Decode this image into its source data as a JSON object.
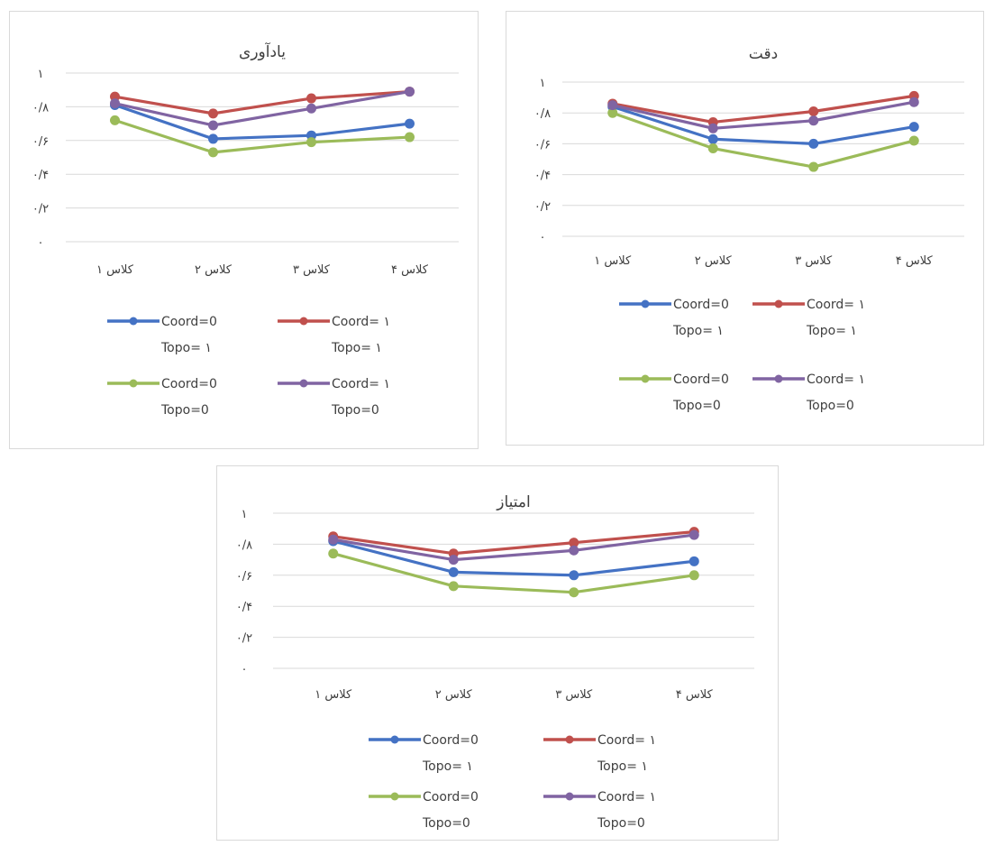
{
  "chart_data": [
    {
      "type": "line",
      "title": "یادآوری",
      "categories": [
        "کلاس ۱",
        "کلاس ۲",
        "کلاس ۳",
        "کلاس ۴"
      ],
      "y_tick_labels": [
        "۰",
        "۰/۲",
        "۰/۴",
        "۰/۶",
        "۰/۸",
        "۱"
      ],
      "ylim": [
        0,
        1
      ],
      "grid": true,
      "legend_position": "bottom",
      "series": [
        {
          "name": "Coord=0 Topo= ۱",
          "name_lines": [
            "Coord=0",
            "Topo= ۱"
          ],
          "color": "#4472c4",
          "values": [
            0.81,
            0.61,
            0.63,
            0.7
          ]
        },
        {
          "name": "Coord= ۱ Topo= ۱",
          "name_lines": [
            "Coord= ۱",
            "Topo= ۱"
          ],
          "color": "#c0504d",
          "values": [
            0.86,
            0.76,
            0.85,
            0.89
          ]
        },
        {
          "name": "Coord=0 Topo=0",
          "name_lines": [
            "Coord=0",
            "Topo=0"
          ],
          "color": "#9bbb59",
          "values": [
            0.72,
            0.53,
            0.59,
            0.62
          ]
        },
        {
          "name": "Coord= ۱ Topo=0",
          "name_lines": [
            "Coord= ۱",
            "Topo=0"
          ],
          "color": "#8064a2",
          "values": [
            0.82,
            0.69,
            0.79,
            0.89
          ]
        }
      ]
    },
    {
      "type": "line",
      "title": "دقت",
      "categories": [
        "کلاس ۱",
        "کلاس ۲",
        "کلاس ۳",
        "کلاس ۴"
      ],
      "y_tick_labels": [
        "۰",
        "۰/۲",
        "۰/۴",
        "۰/۶",
        "۰/۸",
        "۱"
      ],
      "ylim": [
        0,
        1
      ],
      "grid": true,
      "legend_position": "bottom",
      "series": [
        {
          "name": "Coord=0 Topo= ۱",
          "name_lines": [
            "Coord=0",
            "Topo= ۱"
          ],
          "color": "#4472c4",
          "values": [
            0.84,
            0.63,
            0.6,
            0.71
          ]
        },
        {
          "name": "Coord= ۱ Topo= ۱",
          "name_lines": [
            "Coord= ۱",
            "Topo= ۱"
          ],
          "color": "#c0504d",
          "values": [
            0.86,
            0.74,
            0.81,
            0.91
          ]
        },
        {
          "name": "Coord=0 Topo=0",
          "name_lines": [
            "Coord=0",
            "Topo=0"
          ],
          "color": "#9bbb59",
          "values": [
            0.8,
            0.57,
            0.45,
            0.62
          ]
        },
        {
          "name": "Coord= ۱ Topo=0",
          "name_lines": [
            "Coord= ۱",
            "Topo=0"
          ],
          "color": "#8064a2",
          "values": [
            0.85,
            0.7,
            0.75,
            0.87
          ]
        }
      ]
    },
    {
      "type": "line",
      "title": "امتیاز",
      "categories": [
        "کلاس ۱",
        "کلاس ۲",
        "کلاس ۳",
        "کلاس ۴"
      ],
      "y_tick_labels": [
        "۰",
        "۰/۲",
        "۰/۴",
        "۰/۶",
        "۰/۸",
        "۱"
      ],
      "ylim": [
        0,
        1
      ],
      "grid": true,
      "legend_position": "bottom",
      "series": [
        {
          "name": "Coord=0 Topo= ۱",
          "name_lines": [
            "Coord=0",
            "Topo= ۱"
          ],
          "color": "#4472c4",
          "values": [
            0.82,
            0.62,
            0.6,
            0.69
          ]
        },
        {
          "name": "Coord= ۱ Topo= ۱",
          "name_lines": [
            "Coord= ۱",
            "Topo= ۱"
          ],
          "color": "#c0504d",
          "values": [
            0.85,
            0.74,
            0.81,
            0.88
          ]
        },
        {
          "name": "Coord=0 Topo=0",
          "name_lines": [
            "Coord=0",
            "Topo=0"
          ],
          "color": "#9bbb59",
          "values": [
            0.74,
            0.53,
            0.49,
            0.6
          ]
        },
        {
          "name": "Coord= ۱ Topo=0",
          "name_lines": [
            "Coord= ۱",
            "Topo=0"
          ],
          "color": "#8064a2",
          "values": [
            0.83,
            0.7,
            0.76,
            0.86
          ]
        }
      ]
    }
  ]
}
